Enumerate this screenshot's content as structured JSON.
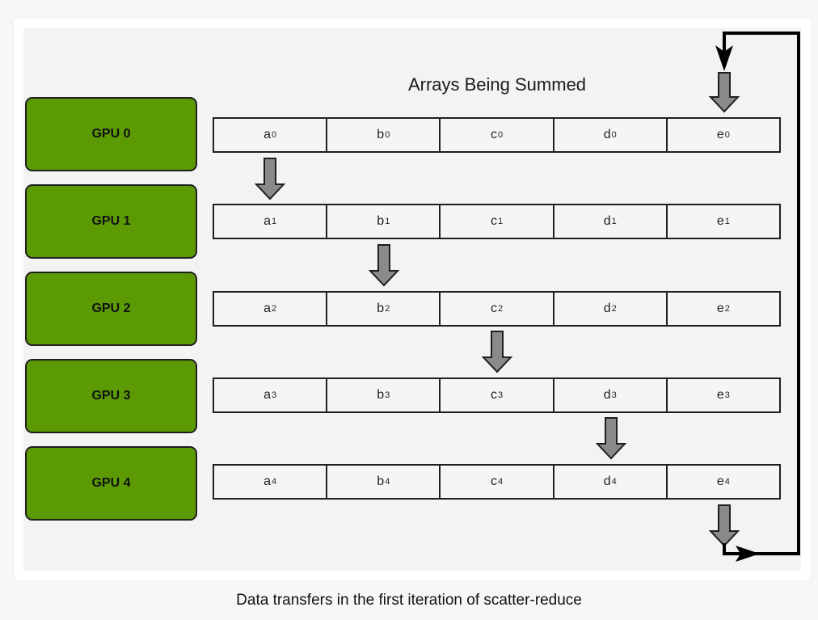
{
  "diagram": {
    "title": "Arrays Being Summed",
    "gpus": [
      {
        "label": "GPU 0",
        "cells": [
          {
            "letter": "a",
            "sub": "0"
          },
          {
            "letter": "b",
            "sub": "0"
          },
          {
            "letter": "c",
            "sub": "0"
          },
          {
            "letter": "d",
            "sub": "0"
          },
          {
            "letter": "e",
            "sub": "0"
          }
        ]
      },
      {
        "label": "GPU 1",
        "cells": [
          {
            "letter": "a",
            "sub": "1"
          },
          {
            "letter": "b",
            "sub": "1"
          },
          {
            "letter": "c",
            "sub": "1"
          },
          {
            "letter": "d",
            "sub": "1"
          },
          {
            "letter": "e",
            "sub": "1"
          }
        ]
      },
      {
        "label": "GPU 2",
        "cells": [
          {
            "letter": "a",
            "sub": "2"
          },
          {
            "letter": "b",
            "sub": "2"
          },
          {
            "letter": "c",
            "sub": "2"
          },
          {
            "letter": "d",
            "sub": "2"
          },
          {
            "letter": "e",
            "sub": "2"
          }
        ]
      },
      {
        "label": "GPU 3",
        "cells": [
          {
            "letter": "a",
            "sub": "3"
          },
          {
            "letter": "b",
            "sub": "3"
          },
          {
            "letter": "c",
            "sub": "3"
          },
          {
            "letter": "d",
            "sub": "3"
          },
          {
            "letter": "e",
            "sub": "3"
          }
        ]
      },
      {
        "label": "GPU 4",
        "cells": [
          {
            "letter": "a",
            "sub": "4"
          },
          {
            "letter": "b",
            "sub": "4"
          },
          {
            "letter": "c",
            "sub": "4"
          },
          {
            "letter": "d",
            "sub": "4"
          },
          {
            "letter": "e",
            "sub": "4"
          }
        ]
      }
    ],
    "colors": {
      "gpu_fill": "#5c9a04",
      "arrow_fill": "#8a8a8a",
      "outline": "#1f1f1f",
      "canvas": "#f3f3f3"
    },
    "arrows": [
      {
        "name": "transfer-arrow-a0-to-gpu1",
        "column": "a",
        "from": "GPU 0",
        "to": "GPU 1"
      },
      {
        "name": "transfer-arrow-b1-to-gpu2",
        "column": "b",
        "from": "GPU 1",
        "to": "GPU 2"
      },
      {
        "name": "transfer-arrow-c2-to-gpu3",
        "column": "c",
        "from": "GPU 2",
        "to": "GPU 3"
      },
      {
        "name": "transfer-arrow-d3-to-gpu4",
        "column": "d",
        "from": "GPU 3",
        "to": "GPU 4"
      },
      {
        "name": "transfer-arrow-e4-to-gpu0",
        "column": "e",
        "from": "GPU 4",
        "to": "GPU 0"
      }
    ]
  },
  "caption": "Data transfers in the first iteration of scatter-reduce"
}
